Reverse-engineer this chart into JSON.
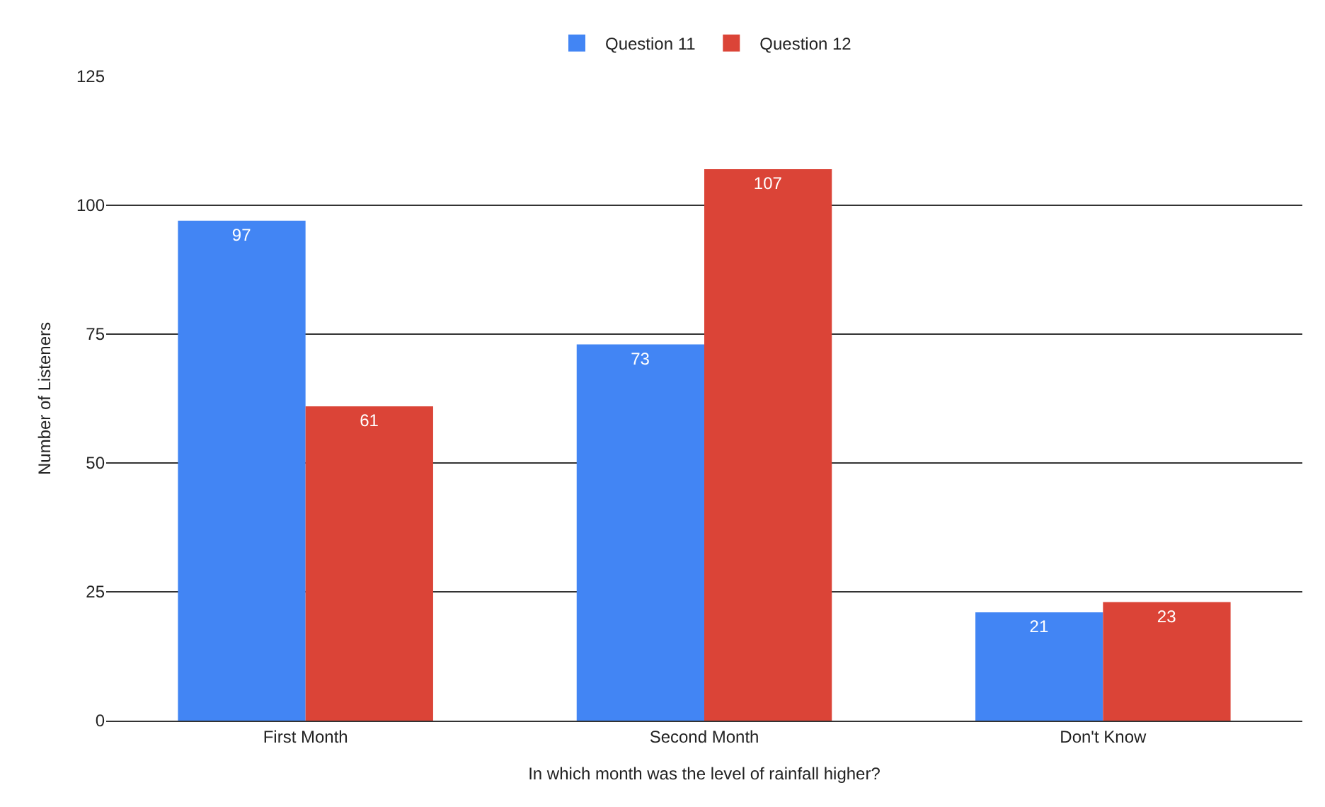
{
  "chart_data": {
    "type": "bar",
    "xlabel": "In which month was the level of rainfall higher?",
    "ylabel": "Number of Listeners",
    "categories": [
      "First Month",
      "Second Month",
      "Don't Know"
    ],
    "series": [
      {
        "name": "Question 11",
        "color": "#4285f4",
        "values": [
          97,
          73,
          21
        ]
      },
      {
        "name": "Question 12",
        "color": "#db4437",
        "values": [
          61,
          107,
          23
        ]
      }
    ],
    "ylim": [
      0,
      125
    ],
    "yticks": [
      0,
      25,
      50,
      75,
      100,
      125
    ],
    "grid": "y",
    "legend": "top",
    "data_labels": true
  }
}
